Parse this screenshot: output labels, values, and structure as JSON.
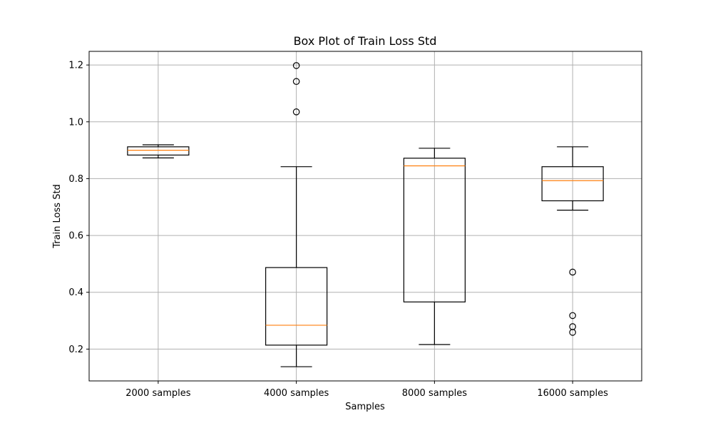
{
  "chart_data": {
    "type": "box",
    "title": "Box Plot of Train Loss Std",
    "xlabel": "Samples",
    "ylabel": "Train Loss Std",
    "ylim": [
      0.088,
      1.248
    ],
    "yticks": [
      0.2,
      0.4,
      0.6,
      0.8,
      1.0,
      1.2
    ],
    "ytick_labels": [
      "0.2",
      "0.4",
      "0.6",
      "0.8",
      "1.0",
      "1.2"
    ],
    "grid": true,
    "categories": [
      "2000 samples",
      "4000 samples",
      "8000 samples",
      "16000 samples"
    ],
    "boxes": [
      {
        "whisker_low": 0.873,
        "q1": 0.883,
        "median": 0.9,
        "q3": 0.912,
        "whisker_high": 0.919,
        "outliers": []
      },
      {
        "whisker_low": 0.138,
        "q1": 0.214,
        "median": 0.284,
        "q3": 0.487,
        "whisker_high": 0.842,
        "outliers": [
          1.198,
          1.142,
          1.035
        ]
      },
      {
        "whisker_low": 0.216,
        "q1": 0.366,
        "median": 0.845,
        "q3": 0.872,
        "whisker_high": 0.907,
        "outliers": []
      },
      {
        "whisker_low": 0.689,
        "q1": 0.722,
        "median": 0.793,
        "q3": 0.842,
        "whisker_high": 0.912,
        "outliers": [
          0.471,
          0.318,
          0.279,
          0.259
        ]
      }
    ],
    "colors": {
      "box": "#000000",
      "median": "#ff7f0e",
      "grid": "#b0b0b0"
    }
  }
}
